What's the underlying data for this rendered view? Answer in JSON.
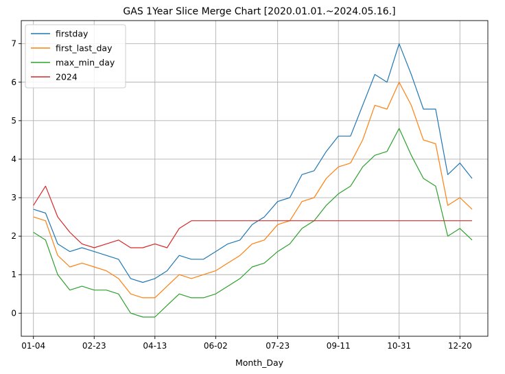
{
  "chart_data": {
    "type": "line",
    "title": "GAS 1Year Slice Merge Chart [2020.01.01.~2024.05.16.]",
    "xlabel": "Month_Day",
    "ylabel": "",
    "ylim": [
      -0.6,
      7.6
    ],
    "xlim": [
      "12-25",
      "01-12"
    ],
    "grid": true,
    "legend_position": "top-left",
    "x_ticks": [
      "01-04",
      "02-23",
      "04-13",
      "06-02",
      "07-23",
      "09-11",
      "10-31",
      "12-20"
    ],
    "y_ticks": [
      0,
      1,
      2,
      3,
      4,
      5,
      6,
      7
    ],
    "x": [
      "01-04",
      "01-14",
      "01-24",
      "02-03",
      "02-13",
      "02-23",
      "03-04",
      "03-14",
      "03-24",
      "04-03",
      "04-13",
      "04-23",
      "05-03",
      "05-13",
      "05-23",
      "06-02",
      "06-12",
      "06-22",
      "07-02",
      "07-12",
      "07-23",
      "08-02",
      "08-12",
      "08-22",
      "09-01",
      "09-11",
      "09-21",
      "10-01",
      "10-11",
      "10-21",
      "10-31",
      "11-10",
      "11-20",
      "11-30",
      "12-10",
      "12-20",
      "12-30"
    ],
    "series": [
      {
        "name": "firstday",
        "color": "#1f77b4",
        "values": [
          2.7,
          2.6,
          1.8,
          1.6,
          1.7,
          1.6,
          1.5,
          1.4,
          0.9,
          0.8,
          0.9,
          1.1,
          1.5,
          1.4,
          1.4,
          1.6,
          1.8,
          1.9,
          2.3,
          2.5,
          2.9,
          3.0,
          3.6,
          3.7,
          4.2,
          4.6,
          4.6,
          5.4,
          6.2,
          6.0,
          7.0,
          6.2,
          5.3,
          5.3,
          3.6,
          3.9,
          3.5
        ]
      },
      {
        "name": "first_last_day",
        "color": "#ff7f0e",
        "values": [
          2.5,
          2.4,
          1.5,
          1.2,
          1.3,
          1.2,
          1.1,
          0.9,
          0.5,
          0.4,
          0.4,
          0.7,
          1.0,
          0.9,
          1.0,
          1.1,
          1.3,
          1.5,
          1.8,
          1.9,
          2.3,
          2.4,
          2.9,
          3.0,
          3.5,
          3.8,
          3.9,
          4.5,
          5.4,
          5.3,
          6.0,
          5.4,
          4.5,
          4.4,
          2.8,
          3.0,
          2.7
        ]
      },
      {
        "name": "max_min_day",
        "color": "#2ca02c",
        "values": [
          2.1,
          1.9,
          1.0,
          0.6,
          0.7,
          0.6,
          0.6,
          0.5,
          0.0,
          -0.1,
          -0.1,
          0.2,
          0.5,
          0.4,
          0.4,
          0.5,
          0.7,
          0.9,
          1.2,
          1.3,
          1.6,
          1.8,
          2.2,
          2.4,
          2.8,
          3.1,
          3.3,
          3.8,
          4.1,
          4.2,
          4.8,
          4.1,
          3.5,
          3.3,
          2.0,
          2.2,
          1.9
        ]
      },
      {
        "name": "2024",
        "color": "#d62728",
        "values": [
          2.8,
          3.3,
          2.5,
          2.1,
          1.8,
          1.7,
          1.8,
          1.9,
          1.7,
          1.7,
          1.8,
          1.7,
          2.2,
          2.4,
          2.4,
          2.4,
          2.4,
          2.4,
          2.4,
          2.4,
          2.4,
          2.4,
          2.4,
          2.4,
          2.4,
          2.4,
          2.4,
          2.4,
          2.4,
          2.4,
          2.4,
          2.4,
          2.4,
          2.4,
          2.4,
          2.4,
          2.4
        ]
      }
    ]
  }
}
